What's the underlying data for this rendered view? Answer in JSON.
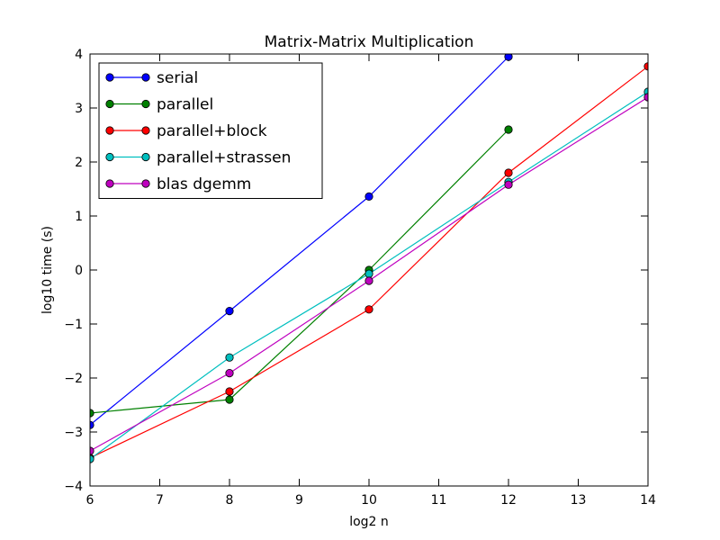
{
  "chart_data": {
    "type": "line",
    "title": "Matrix-Matrix Multiplication",
    "xlabel": "log2 n",
    "ylabel": "log10 time (s)",
    "xlim": [
      6,
      14
    ],
    "ylim": [
      -4,
      4
    ],
    "xticks": [
      "6",
      "7",
      "8",
      "9",
      "10",
      "11",
      "12",
      "13",
      "14"
    ],
    "yticks": [
      "−4",
      "−3",
      "−2",
      "−1",
      "0",
      "1",
      "2",
      "3",
      "4"
    ],
    "legend_position": "top-left",
    "grid": false,
    "series": [
      {
        "name": "serial",
        "color": "#0000ff",
        "x": [
          6,
          8,
          10,
          12
        ],
        "y": [
          -2.87,
          -0.76,
          1.36,
          3.95
        ]
      },
      {
        "name": "parallel",
        "color": "#008000",
        "x": [
          6,
          8,
          10,
          12
        ],
        "y": [
          -2.65,
          -2.4,
          0.0,
          2.6
        ]
      },
      {
        "name": "parallel+block",
        "color": "#ff0000",
        "x": [
          6,
          8,
          10,
          12,
          14
        ],
        "y": [
          -3.48,
          -2.25,
          -0.73,
          1.8,
          3.77
        ]
      },
      {
        "name": "parallel+strassen",
        "color": "#00bfbf",
        "x": [
          6,
          8,
          10,
          12,
          14
        ],
        "y": [
          -3.5,
          -1.62,
          -0.07,
          1.63,
          3.3
        ]
      },
      {
        "name": "blas dgemm",
        "color": "#bf00bf",
        "x": [
          6,
          8,
          10,
          12,
          14
        ],
        "y": [
          -3.35,
          -1.91,
          -0.2,
          1.58,
          3.2
        ]
      }
    ]
  }
}
